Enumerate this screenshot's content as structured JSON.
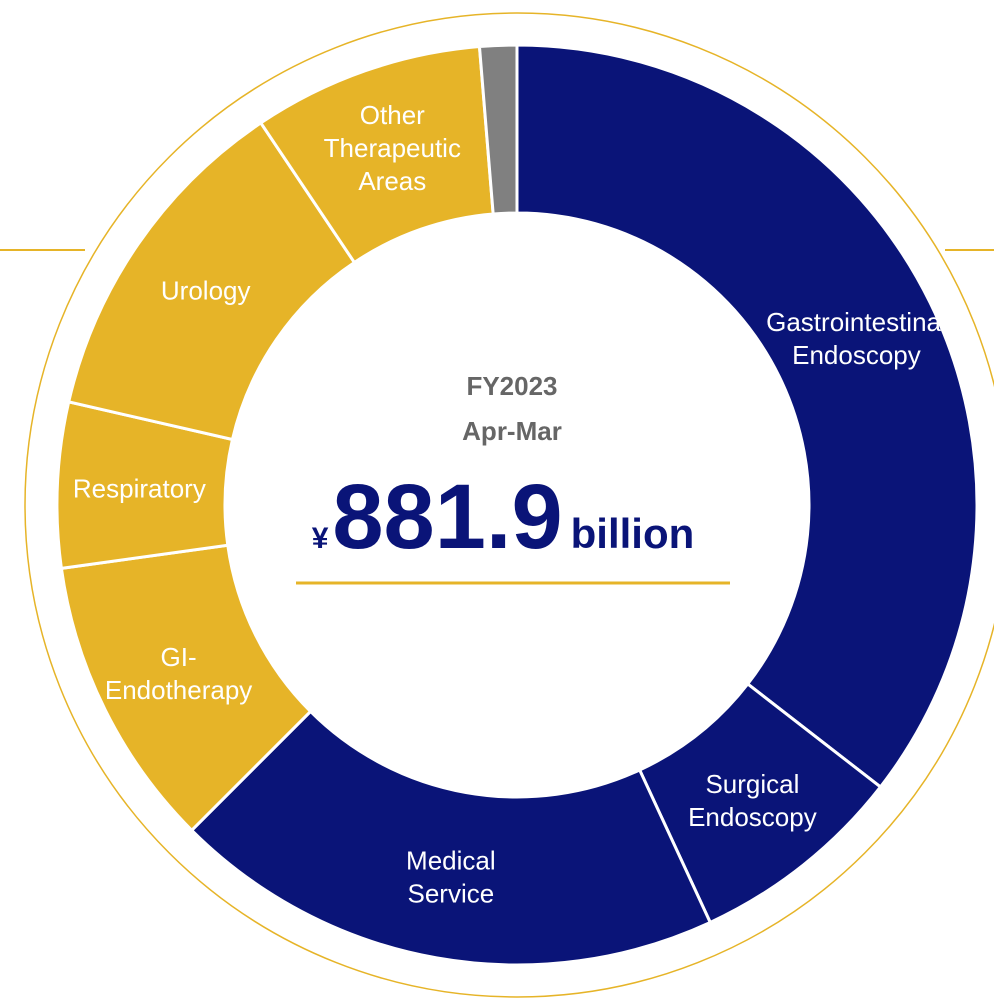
{
  "chart_data": {
    "type": "donut",
    "categories": [
      [
        "Gastrointestinal",
        "Endoscopy"
      ],
      [
        "Surgical",
        "Endoscopy"
      ],
      [
        "Medical",
        "Service"
      ],
      [
        "GI-",
        "Endotherapy"
      ],
      [
        "Respiratory"
      ],
      [
        "Urology"
      ],
      [
        "Other",
        "Therapeutic",
        "Areas"
      ],
      null
    ],
    "values": [
      35.5,
      7.6,
      19.4,
      10.3,
      5.8,
      12.0,
      8.1,
      1.3
    ],
    "colors": [
      "#0a1478",
      "#0a1478",
      "#0a1478",
      "#e6b428",
      "#e6b428",
      "#e6b428",
      "#e6b428",
      "#808080"
    ],
    "center": {
      "period": "FY2023",
      "months": "Apr-Mar",
      "currency": "¥",
      "amount": "881.9",
      "unit": "billion"
    }
  }
}
